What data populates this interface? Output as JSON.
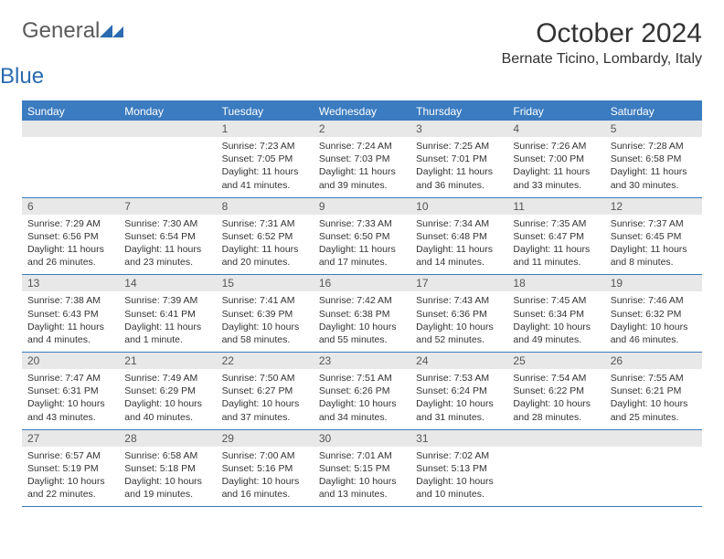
{
  "colors": {
    "brand_blue": "#3b7bbf",
    "header_gray": "#e8e8e8",
    "text": "#333333",
    "logo_gray": "#5a5a5a",
    "background": "#ffffff"
  },
  "typography": {
    "month_title_fontsize": 30,
    "location_fontsize": 16,
    "day_header_fontsize": 12,
    "daynum_fontsize": 12,
    "cell_fontsize": 10.5
  },
  "logo": {
    "line1": "General",
    "line2": "Blue"
  },
  "title": "October 2024",
  "location": "Bernate Ticino, Lombardy, Italy",
  "day_headers": [
    "Sunday",
    "Monday",
    "Tuesday",
    "Wednesday",
    "Thursday",
    "Friday",
    "Saturday"
  ],
  "weeks": [
    [
      {
        "num": "",
        "sunrise": "",
        "sunset": "",
        "daylight": ""
      },
      {
        "num": "",
        "sunrise": "",
        "sunset": "",
        "daylight": ""
      },
      {
        "num": "1",
        "sunrise": "Sunrise: 7:23 AM",
        "sunset": "Sunset: 7:05 PM",
        "daylight": "Daylight: 11 hours and 41 minutes."
      },
      {
        "num": "2",
        "sunrise": "Sunrise: 7:24 AM",
        "sunset": "Sunset: 7:03 PM",
        "daylight": "Daylight: 11 hours and 39 minutes."
      },
      {
        "num": "3",
        "sunrise": "Sunrise: 7:25 AM",
        "sunset": "Sunset: 7:01 PM",
        "daylight": "Daylight: 11 hours and 36 minutes."
      },
      {
        "num": "4",
        "sunrise": "Sunrise: 7:26 AM",
        "sunset": "Sunset: 7:00 PM",
        "daylight": "Daylight: 11 hours and 33 minutes."
      },
      {
        "num": "5",
        "sunrise": "Sunrise: 7:28 AM",
        "sunset": "Sunset: 6:58 PM",
        "daylight": "Daylight: 11 hours and 30 minutes."
      }
    ],
    [
      {
        "num": "6",
        "sunrise": "Sunrise: 7:29 AM",
        "sunset": "Sunset: 6:56 PM",
        "daylight": "Daylight: 11 hours and 26 minutes."
      },
      {
        "num": "7",
        "sunrise": "Sunrise: 7:30 AM",
        "sunset": "Sunset: 6:54 PM",
        "daylight": "Daylight: 11 hours and 23 minutes."
      },
      {
        "num": "8",
        "sunrise": "Sunrise: 7:31 AM",
        "sunset": "Sunset: 6:52 PM",
        "daylight": "Daylight: 11 hours and 20 minutes."
      },
      {
        "num": "9",
        "sunrise": "Sunrise: 7:33 AM",
        "sunset": "Sunset: 6:50 PM",
        "daylight": "Daylight: 11 hours and 17 minutes."
      },
      {
        "num": "10",
        "sunrise": "Sunrise: 7:34 AM",
        "sunset": "Sunset: 6:48 PM",
        "daylight": "Daylight: 11 hours and 14 minutes."
      },
      {
        "num": "11",
        "sunrise": "Sunrise: 7:35 AM",
        "sunset": "Sunset: 6:47 PM",
        "daylight": "Daylight: 11 hours and 11 minutes."
      },
      {
        "num": "12",
        "sunrise": "Sunrise: 7:37 AM",
        "sunset": "Sunset: 6:45 PM",
        "daylight": "Daylight: 11 hours and 8 minutes."
      }
    ],
    [
      {
        "num": "13",
        "sunrise": "Sunrise: 7:38 AM",
        "sunset": "Sunset: 6:43 PM",
        "daylight": "Daylight: 11 hours and 4 minutes."
      },
      {
        "num": "14",
        "sunrise": "Sunrise: 7:39 AM",
        "sunset": "Sunset: 6:41 PM",
        "daylight": "Daylight: 11 hours and 1 minute."
      },
      {
        "num": "15",
        "sunrise": "Sunrise: 7:41 AM",
        "sunset": "Sunset: 6:39 PM",
        "daylight": "Daylight: 10 hours and 58 minutes."
      },
      {
        "num": "16",
        "sunrise": "Sunrise: 7:42 AM",
        "sunset": "Sunset: 6:38 PM",
        "daylight": "Daylight: 10 hours and 55 minutes."
      },
      {
        "num": "17",
        "sunrise": "Sunrise: 7:43 AM",
        "sunset": "Sunset: 6:36 PM",
        "daylight": "Daylight: 10 hours and 52 minutes."
      },
      {
        "num": "18",
        "sunrise": "Sunrise: 7:45 AM",
        "sunset": "Sunset: 6:34 PM",
        "daylight": "Daylight: 10 hours and 49 minutes."
      },
      {
        "num": "19",
        "sunrise": "Sunrise: 7:46 AM",
        "sunset": "Sunset: 6:32 PM",
        "daylight": "Daylight: 10 hours and 46 minutes."
      }
    ],
    [
      {
        "num": "20",
        "sunrise": "Sunrise: 7:47 AM",
        "sunset": "Sunset: 6:31 PM",
        "daylight": "Daylight: 10 hours and 43 minutes."
      },
      {
        "num": "21",
        "sunrise": "Sunrise: 7:49 AM",
        "sunset": "Sunset: 6:29 PM",
        "daylight": "Daylight: 10 hours and 40 minutes."
      },
      {
        "num": "22",
        "sunrise": "Sunrise: 7:50 AM",
        "sunset": "Sunset: 6:27 PM",
        "daylight": "Daylight: 10 hours and 37 minutes."
      },
      {
        "num": "23",
        "sunrise": "Sunrise: 7:51 AM",
        "sunset": "Sunset: 6:26 PM",
        "daylight": "Daylight: 10 hours and 34 minutes."
      },
      {
        "num": "24",
        "sunrise": "Sunrise: 7:53 AM",
        "sunset": "Sunset: 6:24 PM",
        "daylight": "Daylight: 10 hours and 31 minutes."
      },
      {
        "num": "25",
        "sunrise": "Sunrise: 7:54 AM",
        "sunset": "Sunset: 6:22 PM",
        "daylight": "Daylight: 10 hours and 28 minutes."
      },
      {
        "num": "26",
        "sunrise": "Sunrise: 7:55 AM",
        "sunset": "Sunset: 6:21 PM",
        "daylight": "Daylight: 10 hours and 25 minutes."
      }
    ],
    [
      {
        "num": "27",
        "sunrise": "Sunrise: 6:57 AM",
        "sunset": "Sunset: 5:19 PM",
        "daylight": "Daylight: 10 hours and 22 minutes."
      },
      {
        "num": "28",
        "sunrise": "Sunrise: 6:58 AM",
        "sunset": "Sunset: 5:18 PM",
        "daylight": "Daylight: 10 hours and 19 minutes."
      },
      {
        "num": "29",
        "sunrise": "Sunrise: 7:00 AM",
        "sunset": "Sunset: 5:16 PM",
        "daylight": "Daylight: 10 hours and 16 minutes."
      },
      {
        "num": "30",
        "sunrise": "Sunrise: 7:01 AM",
        "sunset": "Sunset: 5:15 PM",
        "daylight": "Daylight: 10 hours and 13 minutes."
      },
      {
        "num": "31",
        "sunrise": "Sunrise: 7:02 AM",
        "sunset": "Sunset: 5:13 PM",
        "daylight": "Daylight: 10 hours and 10 minutes."
      },
      {
        "num": "",
        "sunrise": "",
        "sunset": "",
        "daylight": ""
      },
      {
        "num": "",
        "sunrise": "",
        "sunset": "",
        "daylight": ""
      }
    ]
  ]
}
